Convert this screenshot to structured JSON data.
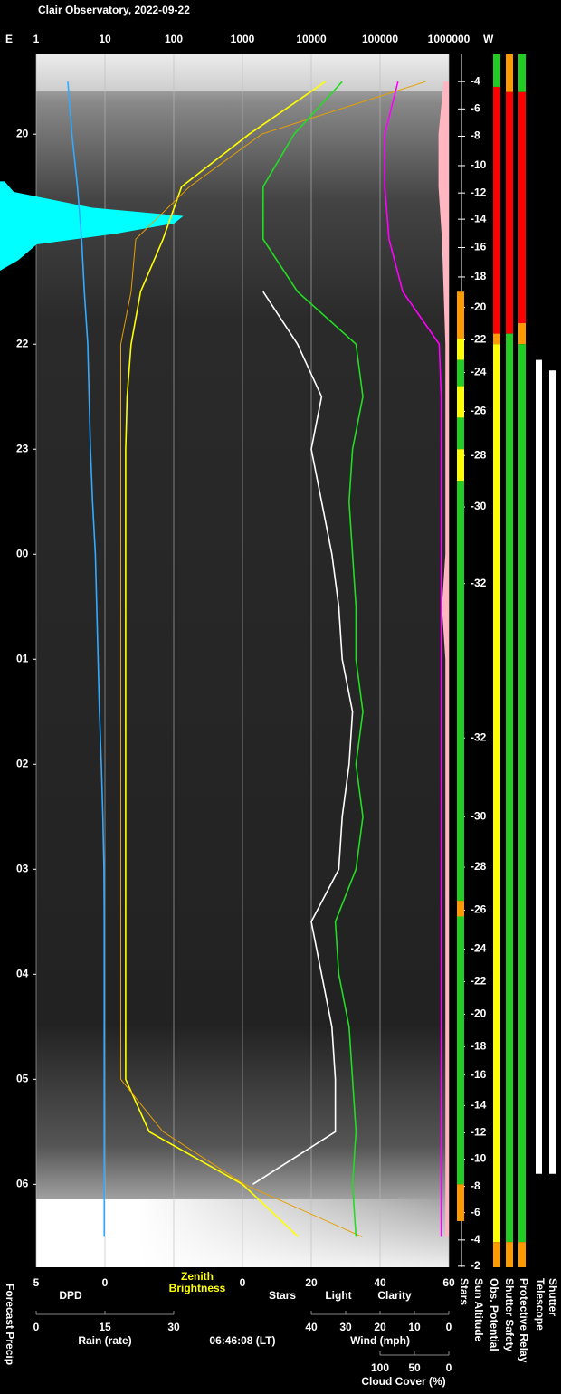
{
  "chart_data": {
    "type": "line",
    "title": "Clair Observatory, 2022-09-22",
    "east_label": "E",
    "west_label": "W",
    "timestamp": "06:46:08 (LT)",
    "time_axis": {
      "ylim": [
        19.24,
        30.79
      ],
      "yticks": [
        20,
        21,
        22,
        23,
        {
          "value": 24,
          "label": "00"
        },
        {
          "value": 25,
          "label": "01"
        },
        {
          "value": 26,
          "label": "02"
        },
        {
          "value": 27,
          "label": "03"
        },
        {
          "value": 28,
          "label": "04"
        },
        {
          "value": 29,
          "label": "05"
        },
        {
          "value": 30,
          "label": "06"
        }
      ]
    },
    "brightness_axis": {
      "log": true,
      "grid": true,
      "xlim": [
        1,
        1000000
      ],
      "xticks": [
        1,
        10,
        100,
        1000,
        10000,
        100000,
        1000000
      ]
    },
    "dpd_axis": {
      "xlim": [
        5,
        0
      ],
      "xticks": [
        5,
        0
      ]
    },
    "stars_axis": {
      "xlim": [
        0,
        60
      ],
      "xticks": [
        0,
        20,
        40,
        60
      ]
    },
    "rain_axis": {
      "xlim": [
        0,
        30
      ],
      "xticks": [
        0,
        15,
        30
      ]
    },
    "wind_axis": {
      "xlim": [
        40,
        0
      ],
      "xticks": [
        40,
        30,
        20,
        10,
        0
      ]
    },
    "cloud_axis": {
      "xlim": [
        100,
        0
      ],
      "xticks": [
        100,
        50,
        0
      ]
    },
    "x": [
      19.5,
      20,
      20.5,
      21,
      21.5,
      22,
      22.5,
      23,
      23.5,
      24,
      24.5,
      25,
      25.5,
      26,
      26.5,
      27,
      27.5,
      28,
      28.5,
      29,
      29.5,
      30,
      30.5
    ],
    "series": [
      {
        "name": "Zenith Brightness",
        "axis": "brightness",
        "color": "#ffff00",
        "values": [
          16000,
          1250,
          130,
          70,
          33,
          24,
          21,
          20,
          20,
          20,
          20,
          20,
          20,
          20,
          20,
          20,
          20,
          20,
          20,
          20,
          44,
          1000,
          6500
        ]
      },
      {
        "name": "Light",
        "axis": "brightness",
        "color": "#e8a000",
        "values": [
          460000,
          1900,
          170,
          28,
          24,
          17,
          17,
          17,
          17,
          17,
          17,
          17,
          17,
          17,
          17,
          17,
          17,
          17,
          17,
          17,
          70,
          1060,
          55000
        ]
      },
      {
        "name": "Clarity",
        "axis": "stars",
        "color": "#22dd22",
        "values": [
          29,
          15,
          6,
          6,
          16,
          33,
          35,
          32,
          31,
          32,
          33,
          33,
          35,
          33,
          35,
          33,
          27,
          28,
          31,
          32,
          33,
          32,
          33
        ]
      },
      {
        "name": "Stars",
        "axis": "stars",
        "color": "#ffffff",
        "values": [
          null,
          null,
          null,
          null,
          6,
          16,
          23,
          20,
          23,
          26,
          28,
          29,
          32,
          31,
          29,
          28,
          20,
          23,
          26,
          27,
          27,
          3,
          null
        ]
      },
      {
        "name": "Cloud Cover (%)",
        "axis": "cloud",
        "color": "#ff00ff",
        "values": [
          74,
          93,
          93,
          87,
          67,
          14,
          11,
          11,
          11,
          11,
          11,
          11,
          11,
          11,
          11,
          11,
          11,
          11,
          11,
          11,
          11,
          11,
          11
        ]
      },
      {
        "name": "DPD",
        "axis": "dpd",
        "color": "#33aaff",
        "values": [
          2.7,
          2.4,
          2.0,
          1.7,
          1.5,
          1.25,
          1.15,
          1.05,
          0.9,
          0.7,
          0.6,
          0.5,
          0.4,
          0.26,
          0.15,
          0.07,
          0.05,
          0.05,
          0.05,
          0.05,
          0.05,
          0.05,
          0.05
        ]
      },
      {
        "name": "Wind (mph)",
        "axis": "wind",
        "color": "#ffb6c1",
        "area": true,
        "values": [
          1.5,
          3,
          3,
          2,
          1.5,
          1,
          1,
          1,
          1,
          1,
          2,
          1,
          1,
          1,
          1,
          1,
          1,
          1,
          1,
          1,
          1,
          1,
          1
        ]
      }
    ],
    "rain_label": "Rain (rate)",
    "rain_color": "#33dddd",
    "forecast_precip": {
      "name": "Forecast Precip",
      "color": "#00ffff",
      "x": [
        20.45,
        20.55,
        20.7,
        20.78,
        20.85,
        20.95,
        21.05,
        21.2,
        21.3
      ],
      "values": [
        1,
        3,
        20,
        40,
        38,
        25,
        8,
        4,
        0
      ]
    },
    "sun_altitude": {
      "name": "Sun Altitude",
      "ticks": [
        {
          "time": 19.5,
          "altitude": -4
        },
        {
          "time": 19.76,
          "altitude": -6
        },
        {
          "time": 20.02,
          "altitude": -8
        },
        {
          "time": 20.3,
          "altitude": -10
        },
        {
          "time": 20.56,
          "altitude": -12
        },
        {
          "time": 20.81,
          "altitude": -14
        },
        {
          "time": 21.08,
          "altitude": -16
        },
        {
          "time": 21.36,
          "altitude": -18
        },
        {
          "time": 21.65,
          "altitude": -20
        },
        {
          "time": 21.96,
          "altitude": -22
        },
        {
          "time": 22.27,
          "altitude": -24
        },
        {
          "time": 22.64,
          "altitude": -26
        },
        {
          "time": 23.06,
          "altitude": -28
        },
        {
          "time": 23.55,
          "altitude": -30
        },
        {
          "time": 24.28,
          "altitude": -32
        },
        {
          "time": 25.75,
          "altitude": -32
        },
        {
          "time": 26.5,
          "altitude": -30
        },
        {
          "time": 26.98,
          "altitude": -28
        },
        {
          "time": 27.39,
          "altitude": -26
        },
        {
          "time": 27.76,
          "altitude": -24
        },
        {
          "time": 28.07,
          "altitude": -22
        },
        {
          "time": 28.38,
          "altitude": -20
        },
        {
          "time": 28.69,
          "altitude": -18
        },
        {
          "time": 28.96,
          "altitude": -16
        },
        {
          "time": 29.25,
          "altitude": -14
        },
        {
          "time": 29.51,
          "altitude": -12
        },
        {
          "time": 29.76,
          "altitude": -10
        },
        {
          "time": 30.02,
          "altitude": -8
        },
        {
          "time": 30.27,
          "altitude": -6
        },
        {
          "time": 30.53,
          "altitude": -4
        },
        {
          "time": 30.78,
          "altitude": -2
        }
      ]
    },
    "status": [
      {
        "name": "Stars",
        "segments": [
          {
            "start": 21.5,
            "end": 21.95,
            "color": "#ff9900"
          },
          {
            "start": 21.95,
            "end": 22.15,
            "color": "#ffff00"
          },
          {
            "start": 22.15,
            "end": 22.4,
            "color": "#22cc22"
          },
          {
            "start": 22.4,
            "end": 22.7,
            "color": "#ffff00"
          },
          {
            "start": 22.7,
            "end": 23.0,
            "color": "#22cc22"
          },
          {
            "start": 23.0,
            "end": 23.3,
            "color": "#ffff00"
          },
          {
            "start": 23.3,
            "end": 27.3,
            "color": "#22cc22"
          },
          {
            "start": 27.3,
            "end": 27.45,
            "color": "#ff9900"
          },
          {
            "start": 27.45,
            "end": 30.0,
            "color": "#22cc22"
          },
          {
            "start": 30.0,
            "end": 30.35,
            "color": "#ff9900"
          }
        ]
      },
      {
        "name": "Obs. Potential",
        "segments": [
          {
            "start": 19.24,
            "end": 19.55,
            "color": "#22cc22"
          },
          {
            "start": 19.55,
            "end": 21.9,
            "color": "#ff0000"
          },
          {
            "start": 21.9,
            "end": 22.0,
            "color": "#ff9900"
          },
          {
            "start": 22.0,
            "end": 30.55,
            "color": "#ffff00"
          },
          {
            "start": 30.55,
            "end": 30.79,
            "color": "#ff9900"
          }
        ]
      },
      {
        "name": "Shutter Safety",
        "segments": [
          {
            "start": 19.24,
            "end": 19.6,
            "color": "#ff9900"
          },
          {
            "start": 19.6,
            "end": 21.9,
            "color": "#ff0000"
          },
          {
            "start": 21.9,
            "end": 30.55,
            "color": "#22cc22"
          },
          {
            "start": 30.55,
            "end": 30.79,
            "color": "#ff9900"
          }
        ]
      },
      {
        "name": "Protective Relay",
        "segments": [
          {
            "start": 19.24,
            "end": 19.6,
            "color": "#22cc22"
          },
          {
            "start": 19.6,
            "end": 21.8,
            "color": "#ff0000"
          },
          {
            "start": 21.8,
            "end": 22.0,
            "color": "#ff9900"
          },
          {
            "start": 22.0,
            "end": 30.55,
            "color": "#22cc22"
          },
          {
            "start": 30.55,
            "end": 30.79,
            "color": "#ff9900"
          }
        ]
      },
      {
        "name": "Telescope",
        "segments": [
          {
            "start": 22.15,
            "end": 29.9,
            "color": "#ffffff"
          }
        ]
      },
      {
        "name": "Shutter",
        "segments": [
          {
            "start": 22.25,
            "end": 29.9,
            "color": "#ffffff"
          }
        ]
      }
    ]
  }
}
